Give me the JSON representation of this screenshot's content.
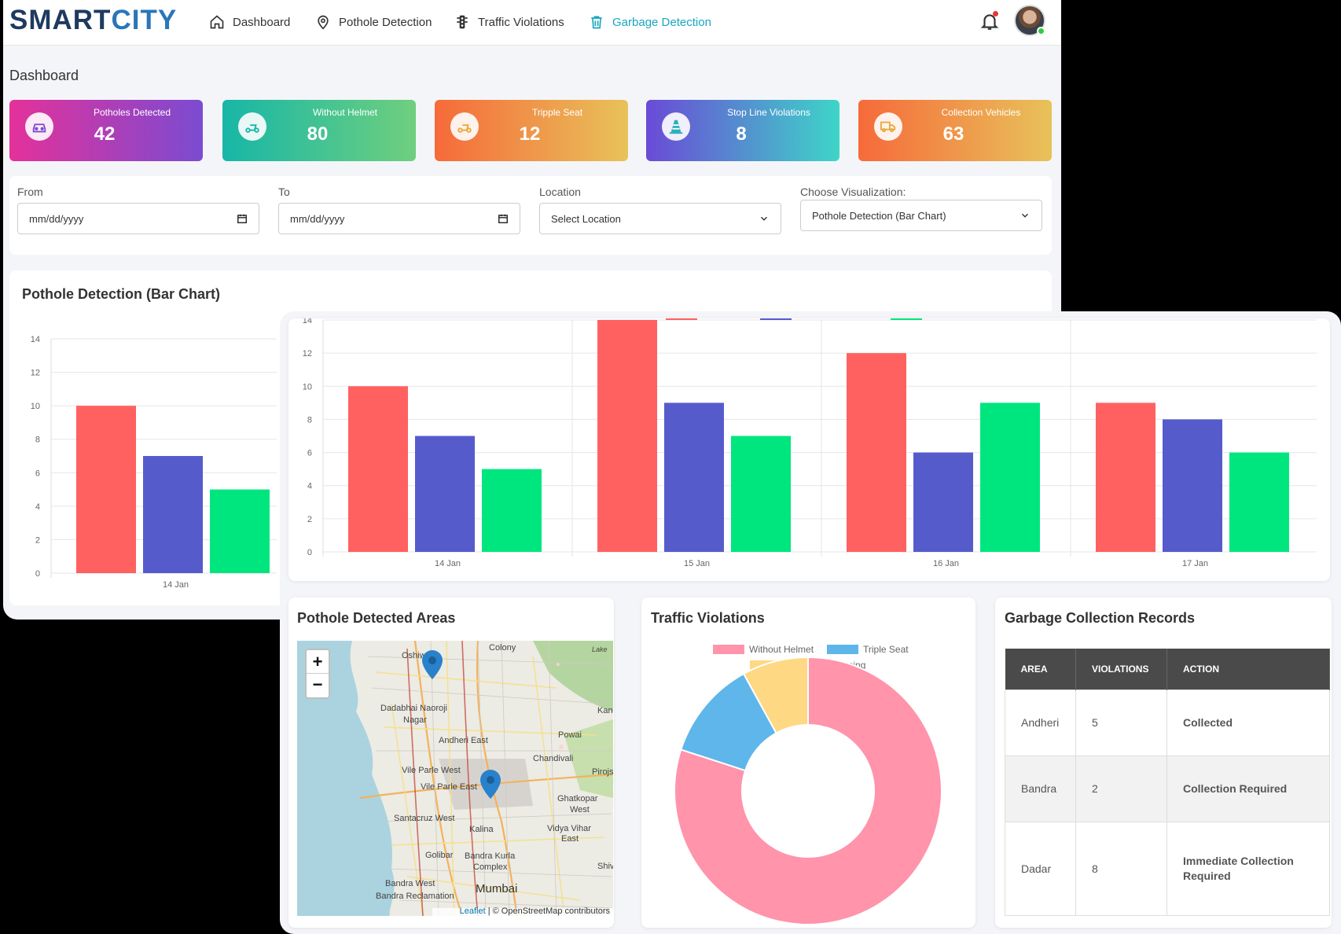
{
  "brand": {
    "part1": "SMART",
    "part2": "CITY"
  },
  "nav": {
    "dashboard": "Dashboard",
    "pothole": "Pothole Detection",
    "traffic": "Traffic Violations",
    "garbage": "Garbage Detection"
  },
  "page_title": "Dashboard",
  "stats": [
    {
      "label": "Potholes Detected",
      "value": "42",
      "icon": "car-icon"
    },
    {
      "label": "Without Helmet",
      "value": "80",
      "icon": "scooter-icon"
    },
    {
      "label": "Tripple Seat",
      "value": "12",
      "icon": "scooter-icon"
    },
    {
      "label": "Stop Line Violations",
      "value": "8",
      "icon": "traffic-cone-icon"
    },
    {
      "label": "Collection Vehicles",
      "value": "63",
      "icon": "truck-icon"
    }
  ],
  "filters": {
    "from_label": "From",
    "to_label": "To",
    "location_label": "Location",
    "viz_label": "Choose Visualization:",
    "date_placeholder": "mm/dd/yyyy",
    "location_value": "Select Location",
    "viz_value": "Pothole Detection (Bar Chart)"
  },
  "chart_card_title": "Pothole Detection (Bar Chart)",
  "chart_data": [
    {
      "type": "bar",
      "categories": [
        "14 Jan",
        "15 Jan",
        "16 Jan",
        "17 Jan"
      ],
      "series": [
        {
          "color": "#ff6161",
          "values": [
            10,
            14,
            12,
            9
          ]
        },
        {
          "color": "#565bcc",
          "values": [
            7,
            9,
            6,
            8
          ]
        },
        {
          "color": "#00e67f",
          "values": [
            5,
            7,
            9,
            6
          ]
        }
      ],
      "yticks": [
        0,
        2,
        4,
        6,
        8,
        10,
        12,
        14
      ],
      "ylim": [
        0,
        14
      ],
      "grid": true
    },
    {
      "type": "pie",
      "title": "Traffic Violations",
      "labels": [
        "Without Helmet",
        "Triple Seat",
        "Stop Line Crossing"
      ],
      "values": [
        80,
        12,
        8
      ],
      "colors": [
        "#ff94ab",
        "#5fb6ea",
        "#ffd883"
      ]
    }
  ],
  "map": {
    "title": "Pothole Detected Areas",
    "zoom_in": "+",
    "zoom_out": "−",
    "leaflet": "Leaflet",
    "attribution": "| © OpenStreetMap contributors",
    "places": [
      "Oshiw",
      "Colony",
      "Dadabhai Naoroji",
      "Nagar",
      "Andheri East",
      "Powai",
      "Kan",
      "Chandivali",
      "Vile Parle West",
      "Vile Parle East",
      "Pirojs",
      "Ghatkopar",
      "West",
      "Santacruz West",
      "Kalina",
      "Vidya Vihar",
      "East",
      "Golibar",
      "Bandra Kurla",
      "Complex",
      "Bandra West",
      "Mumbai",
      "Bandra Reclamation",
      "Lake",
      "Shiv"
    ]
  },
  "traffic_title": "Traffic Violations",
  "garbage": {
    "title": "Garbage Collection Records",
    "headers": [
      "AREA",
      "VIOLATIONS",
      "ACTION"
    ],
    "rows": [
      {
        "area": "Andheri",
        "violations": "5",
        "action": "Collected"
      },
      {
        "area": "Bandra",
        "violations": "2",
        "action": "Collection Required"
      },
      {
        "area": "Dadar",
        "violations": "8",
        "action": "Immediate Collection Required"
      }
    ]
  }
}
